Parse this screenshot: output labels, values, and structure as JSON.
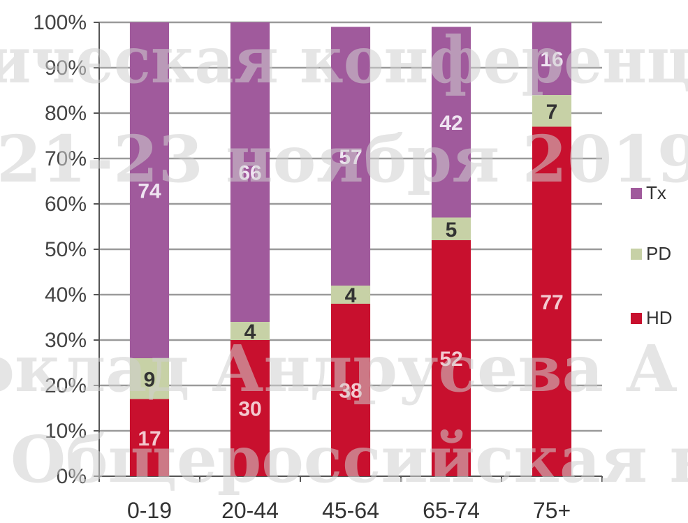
{
  "chart_data": {
    "type": "bar",
    "stacked": true,
    "percent": true,
    "categories": [
      "0-19",
      "20-44",
      "45-64",
      "65-74",
      "75+"
    ],
    "series": [
      {
        "name": "HD",
        "color": "#c8102e",
        "values": [
          17,
          30,
          38,
          52,
          77
        ]
      },
      {
        "name": "PD",
        "color": "#c7d1a6",
        "values": [
          9,
          4,
          4,
          5,
          7
        ]
      },
      {
        "name": "Tx",
        "color": "#a05a9c",
        "values": [
          74,
          66,
          57,
          42,
          16
        ]
      }
    ],
    "data_labels": [
      [
        "17",
        "30",
        "38",
        "52",
        "77"
      ],
      [
        "9",
        "4",
        "4",
        "5",
        "7"
      ],
      [
        "74",
        "66",
        "57",
        "42",
        "16"
      ]
    ],
    "yticks": [
      "0%",
      "10%",
      "20%",
      "30%",
      "40%",
      "50%",
      "60%",
      "70%",
      "80%",
      "90%",
      "100%"
    ],
    "ylim": [
      0,
      100
    ],
    "grid": true,
    "legend": {
      "position": "right",
      "order": [
        "Tx",
        "PD",
        "HD"
      ]
    }
  },
  "watermark": {
    "lines": [
      "ическая конференц",
      "21-23 ноября 2019",
      "оклад Андрусева А",
      "Общероссийская н"
    ]
  }
}
